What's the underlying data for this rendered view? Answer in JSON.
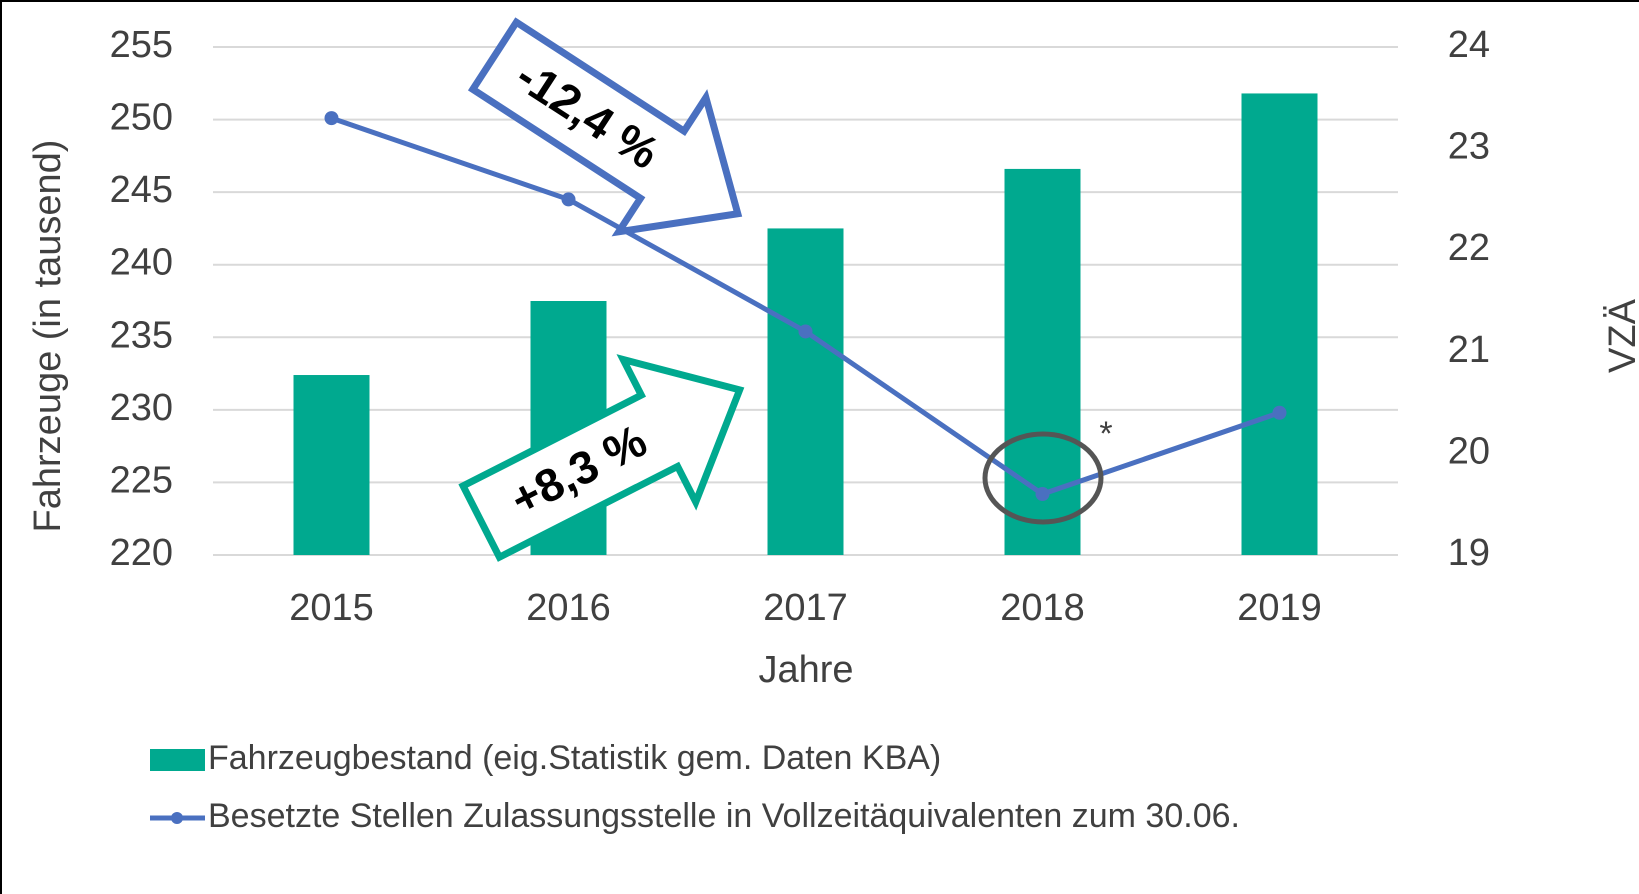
{
  "chart_data": {
    "type": "combo",
    "x_label": "Jahre",
    "y_label": "Fahrzeuge (in tausend)",
    "y2_label": "VZÄ",
    "categories": [
      "2015",
      "2016",
      "2017",
      "2018",
      "2019"
    ],
    "series": [
      {
        "name": "Fahrzeugbestand (eig.Statistik gem. Daten KBA)",
        "type": "bar",
        "color": "#00a98f",
        "values": [
          232.4,
          237.5,
          242.5,
          246.6,
          251.8
        ]
      },
      {
        "name": "Besetzte Stellen Zulassungsstelle in Vollzeitäquivalenten zum 30.06.",
        "type": "line",
        "color": "#4a70c0",
        "axis": "y2",
        "values": [
          23.3,
          22.5,
          21.2,
          19.6,
          20.4
        ]
      }
    ],
    "ylim": [
      220,
      255
    ],
    "yticks": [
      220,
      225,
      230,
      235,
      240,
      245,
      250,
      255
    ],
    "y2lim": [
      19,
      24
    ],
    "y2ticks": [
      19,
      20,
      21,
      22,
      23,
      24
    ],
    "grid": true,
    "legend": "bottom",
    "annotations": [
      "-12,4 %",
      "+8,3 %",
      "*"
    ]
  }
}
